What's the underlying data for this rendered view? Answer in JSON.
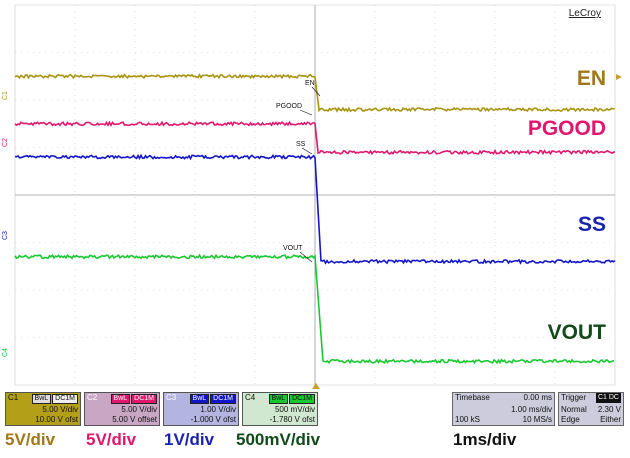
{
  "brand": "LeCroy",
  "colors": {
    "en": "#a89410",
    "pgood": "#e0176d",
    "ss": "#1216c8",
    "vout": "#18c830",
    "en_label": "#a07818",
    "pgood_label": "#e0176d",
    "ss_label": "#1a22b0",
    "vout_label": "#124a1a",
    "grid": "#c8c8c8"
  },
  "waveform_labels": {
    "en": "EN",
    "pgood": "PGOOD",
    "ss": "SS",
    "vout": "VOUT"
  },
  "marker_labels": {
    "en": "EN",
    "pgood": "PGOOD",
    "ss": "SS",
    "vout": "VOUT"
  },
  "channel_markers": {
    "c1": "C1",
    "c2": "C2",
    "c3": "C3",
    "c4": "C4"
  },
  "channels": [
    {
      "name": "C1",
      "tags": [
        "BwL",
        "DC1M"
      ],
      "scale": "5.00 V/div",
      "offset": "10.00 V ofst"
    },
    {
      "name": "C2",
      "tags": [
        "BwL",
        "DC1M"
      ],
      "scale": "5.00 V/div",
      "offset": "5.00 V offset"
    },
    {
      "name": "C3",
      "tags": [
        "BwL",
        "DC1M"
      ],
      "scale": "1.00 V/div",
      "offset": "-1.000 V ofst"
    },
    {
      "name": "C4",
      "tags": [
        "BwL",
        "DC1M"
      ],
      "scale": "500 mV/div",
      "offset": "-1.780 V ofst"
    }
  ],
  "timebase": {
    "label": "Timebase",
    "delay": "0.00 ms",
    "per_div": "1.00 ms/div",
    "samples": "100 kS",
    "rate": "10 MS/s"
  },
  "trigger": {
    "label": "Trigger",
    "channel": "C1 DC",
    "mode": "Normal",
    "level": "2.30 V",
    "type": "Edge",
    "slope": "Either"
  },
  "bottom_labels": {
    "en_scale": "5V/div",
    "pgood_scale": "5V/div",
    "ss_scale": "1V/div",
    "vout_scale": "500mV/div",
    "time_scale": "1ms/div"
  },
  "chart_data": {
    "type": "line",
    "title": "",
    "xlabel": "",
    "ylabel": "",
    "x_divisions": 10,
    "y_divisions": 8,
    "x_unit": "ms",
    "xlim": [
      -5,
      5
    ],
    "edge_time_ms": 0,
    "series": [
      {
        "name": "EN",
        "y_before_div": 6.5,
        "y_after_div": 5.8
      },
      {
        "name": "PGOOD",
        "y_before_div": 5.5,
        "y_after_div": 4.9
      },
      {
        "name": "SS",
        "y_before_div": 4.8,
        "y_after_div": 2.6
      },
      {
        "name": "VOUT",
        "y_before_div": 2.7,
        "y_after_div": 0.5
      }
    ]
  }
}
